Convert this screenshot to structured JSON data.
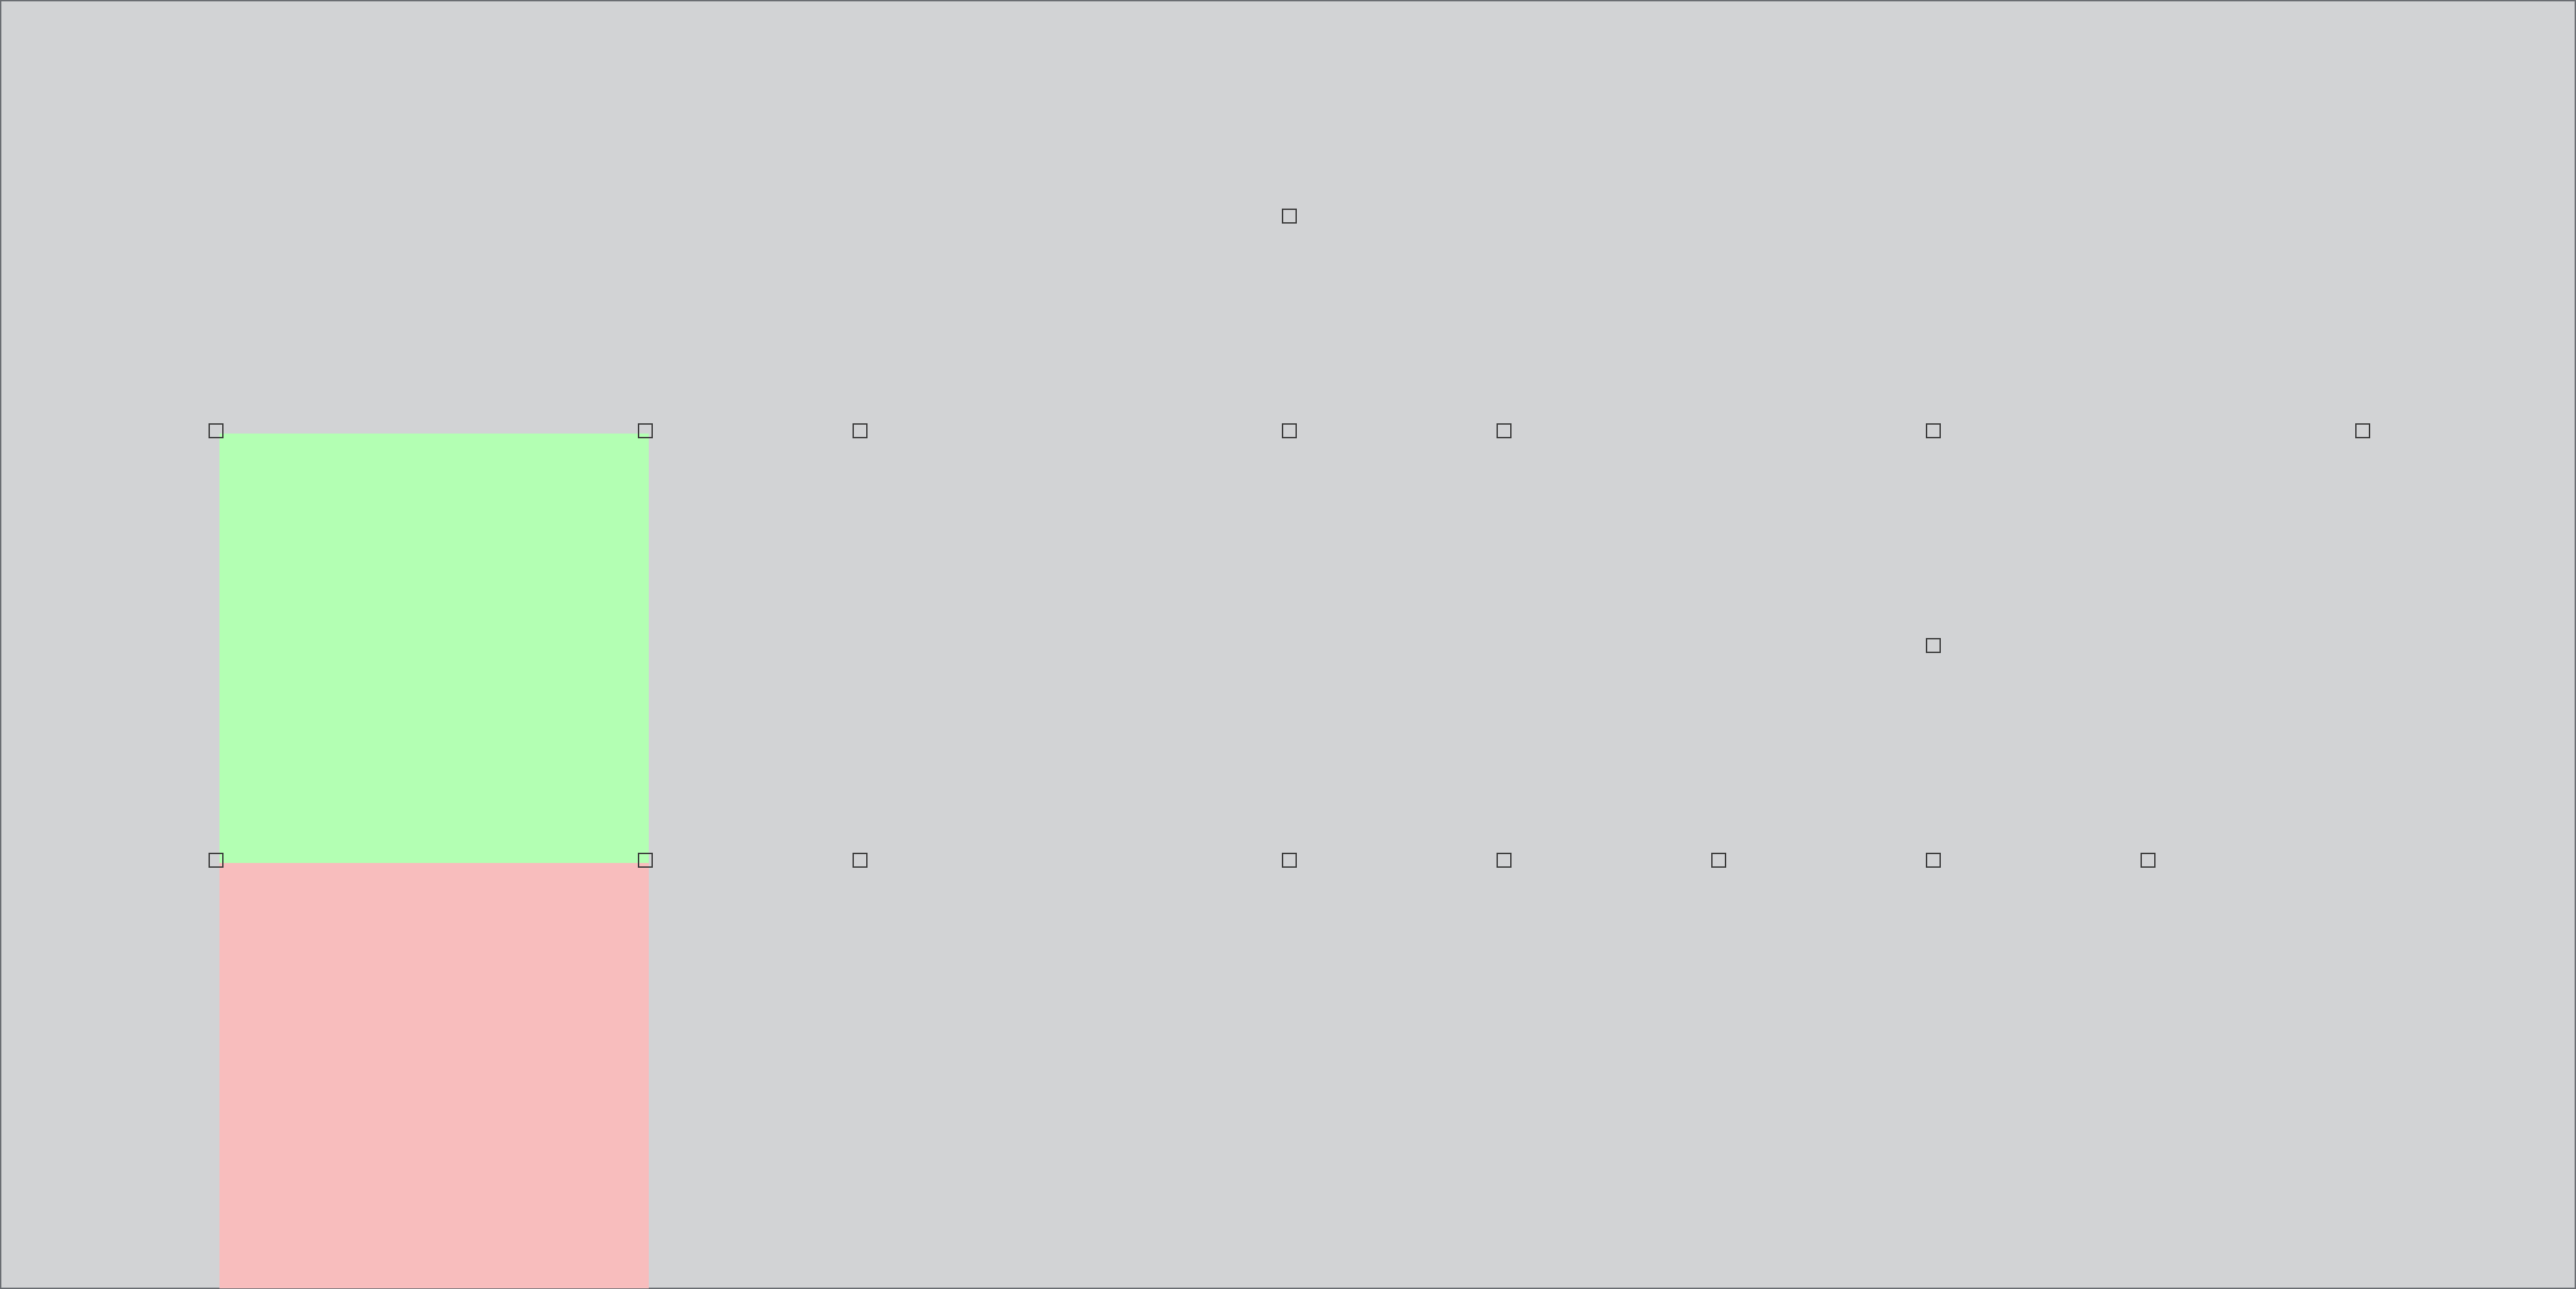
{
  "canvas": {
    "background_color": "#d2d3d5",
    "border_color": "#6b6e73"
  },
  "zones": [
    {
      "name": "green-zone",
      "color": "#b3ffb3"
    },
    {
      "name": "red-zone",
      "color": "#f8bdbd"
    }
  ],
  "handles": {
    "icon": "square-outline-icon",
    "count": 18
  }
}
